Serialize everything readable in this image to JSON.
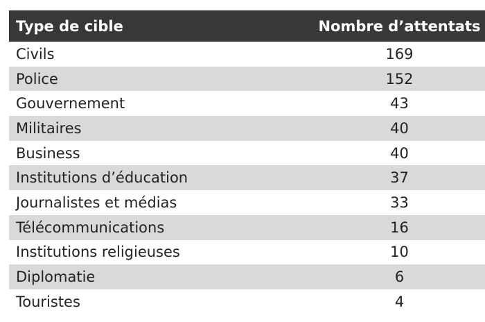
{
  "table": {
    "header": [
      "Type de cible",
      "Nombre d’attentats"
    ],
    "rows": [
      [
        "Civils",
        169
      ],
      [
        "Police",
        152
      ],
      [
        "Gouvernement",
        43
      ],
      [
        "Militaires",
        40
      ],
      [
        "Business",
        40
      ],
      [
        "Institutions d’éducation",
        37
      ],
      [
        "Journalistes et médias",
        33
      ],
      [
        "Télécommunications",
        16
      ],
      [
        "Institutions religieuses",
        10
      ],
      [
        "Diplomatie",
        6
      ],
      [
        "Touristes",
        4
      ]
    ]
  }
}
